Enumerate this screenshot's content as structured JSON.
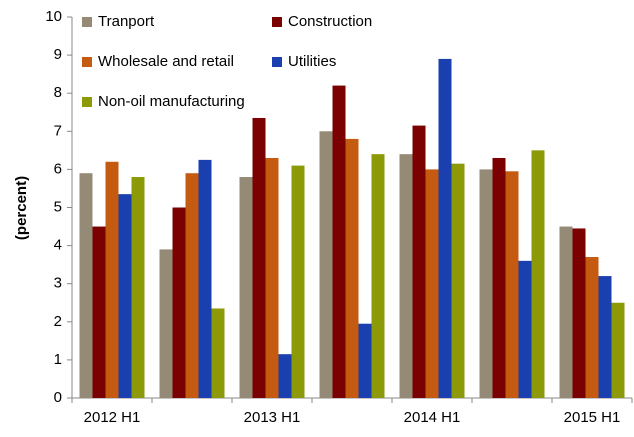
{
  "chart_data": {
    "type": "bar",
    "y_label": "(percent)",
    "categories": [
      "2012 H1",
      null,
      "2013 H1",
      null,
      "2014 H1",
      null,
      "2015 H1"
    ],
    "series": [
      {
        "name": "Tranport",
        "color": "#948a76",
        "values": [
          5.9,
          3.9,
          5.8,
          7.0,
          6.4,
          6.0,
          4.5
        ]
      },
      {
        "name": "Construction",
        "color": "#7b0000",
        "values": [
          4.5,
          5.0,
          7.35,
          8.2,
          7.15,
          6.3,
          4.45
        ]
      },
      {
        "name": "Wholesale and retail",
        "color": "#c55a11",
        "values": [
          6.2,
          5.9,
          6.3,
          6.8,
          6.0,
          5.95,
          3.7
        ]
      },
      {
        "name": "Utilities",
        "color": "#1a3fae",
        "values": [
          5.35,
          6.25,
          1.15,
          1.95,
          8.9,
          3.6,
          3.2
        ]
      },
      {
        "name": "Non-oil manufacturing",
        "color": "#8c9a07",
        "values": [
          5.8,
          2.35,
          6.1,
          6.4,
          6.15,
          6.5,
          2.5
        ]
      }
    ],
    "ylim": [
      0,
      10
    ],
    "yticks": [
      0,
      1,
      2,
      3,
      4,
      5,
      6,
      7,
      8,
      9,
      10
    ],
    "grid": false,
    "legend": "top-left"
  }
}
